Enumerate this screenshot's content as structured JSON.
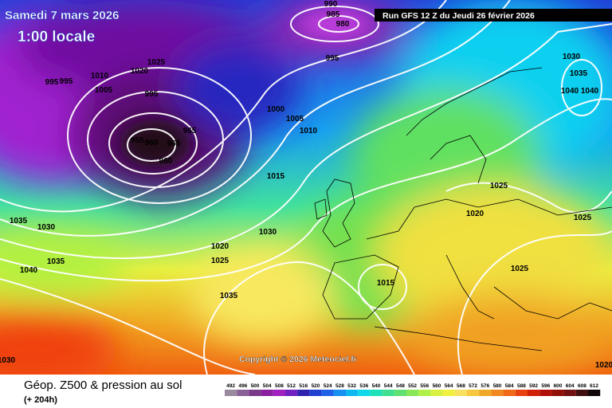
{
  "header": {
    "date": "Samedi 7 mars 2026",
    "time": "1:00 locale",
    "run": "Run GFS 12 Z du Jeudi 26 février 2026"
  },
  "copyright": "Copyright © 2026 Meteociel.fr",
  "footer": {
    "title": "Géop. Z500 & pression au sol",
    "lead": "(+ 204h)"
  },
  "scale": [
    492,
    496,
    500,
    504,
    508,
    512,
    516,
    520,
    524,
    528,
    532,
    536,
    540,
    544,
    548,
    552,
    556,
    560,
    564,
    568,
    572,
    576,
    580,
    584,
    588,
    592,
    596,
    600,
    604,
    608,
    612
  ],
  "isobar_labels": [
    990,
    985,
    980,
    995,
    1030,
    1035,
    1040,
    1040,
    995,
    995,
    1010,
    1020,
    1025,
    1005,
    995,
    965,
    955,
    960,
    965,
    960,
    1000,
    1005,
    1010,
    1015,
    1025,
    1020,
    1025,
    1035,
    1030,
    1030,
    1035,
    1040,
    1020,
    1025,
    1025,
    1015,
    1035,
    1030,
    1020
  ]
}
